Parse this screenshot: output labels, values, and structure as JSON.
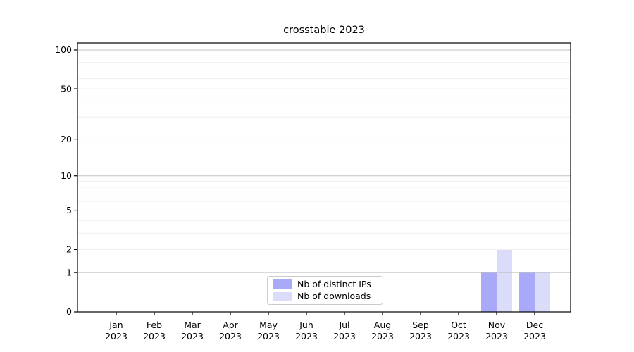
{
  "chart_data": {
    "type": "bar",
    "title": "crosstable 2023",
    "categories": [
      "Jan",
      "Feb",
      "Mar",
      "Apr",
      "May",
      "Jun",
      "Jul",
      "Aug",
      "Sep",
      "Oct",
      "Nov",
      "Dec"
    ],
    "category_year": "2023",
    "series": [
      {
        "name": "Nb of distinct IPs",
        "color": "#a9a9f9",
        "values": [
          0,
          0,
          0,
          0,
          0,
          0,
          0,
          0,
          0,
          0,
          1,
          1
        ]
      },
      {
        "name": "Nb of downloads",
        "color": "#dbdbfa",
        "values": [
          0,
          0,
          0,
          0,
          0,
          0,
          0,
          0,
          0,
          0,
          2,
          1
        ]
      }
    ],
    "xlabel": "",
    "ylabel": "",
    "y_ticks": [
      0,
      1,
      2,
      5,
      10,
      20,
      50,
      100
    ],
    "y_major_gridlines": [
      1,
      10,
      100
    ],
    "y_minor_gridlines": [
      2,
      3,
      4,
      5,
      6,
      7,
      8,
      9,
      20,
      30,
      40,
      50,
      60,
      70,
      80,
      90
    ],
    "ylim": [
      0,
      113
    ],
    "yscale": "log1p",
    "grid": "both",
    "legend_position": "lower center inside plot",
    "bar_layout": "grouped side-by-side"
  },
  "colors": {
    "series_distinct_ips": "#a9a9f9",
    "series_downloads": "#dbdbfa",
    "grid_major": "#c0c0c0",
    "grid_minor": "#efefef",
    "axis": "#000000",
    "background": "#ffffff"
  }
}
